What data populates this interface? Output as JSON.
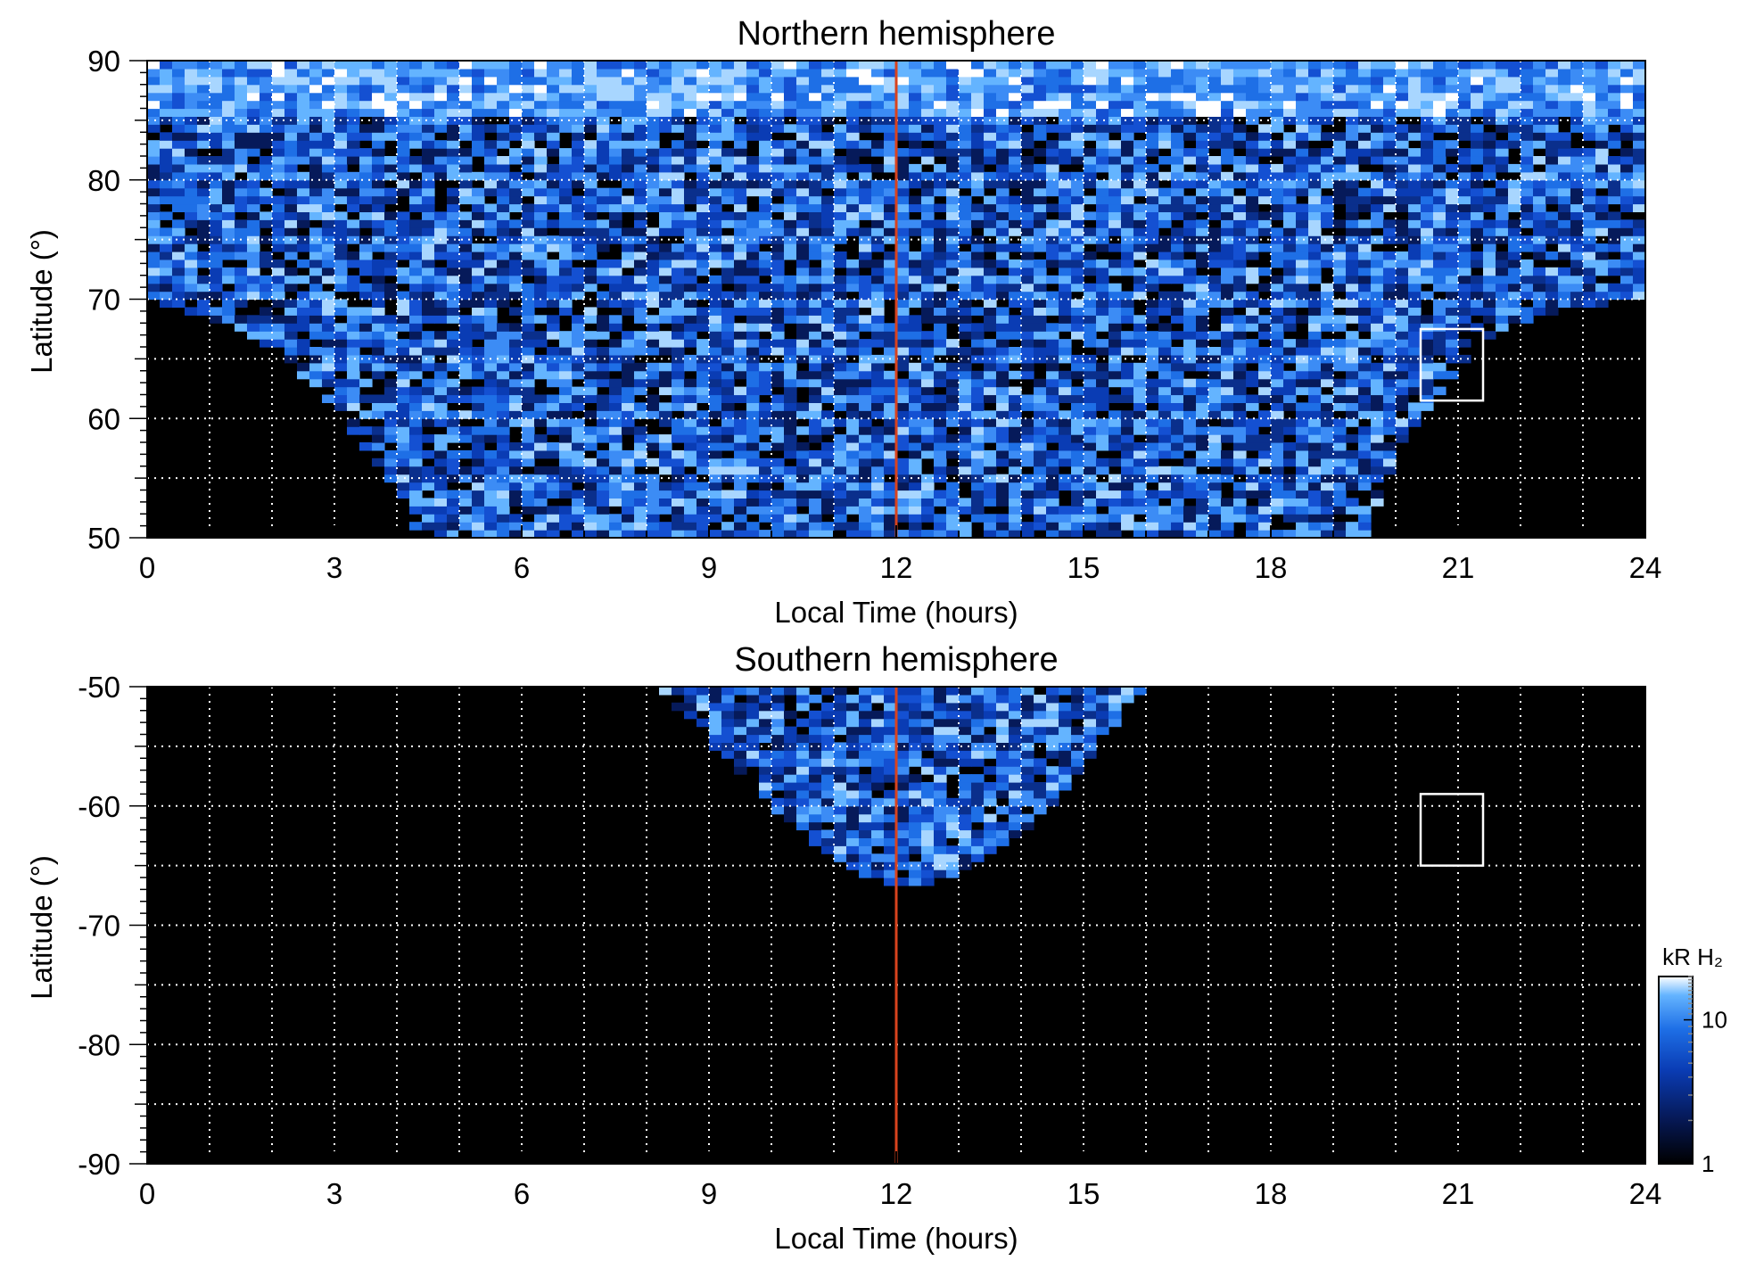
{
  "chart_data": [
    {
      "type": "heatmap",
      "title": "Northern hemisphere",
      "xlabel": "Local Time (hours)",
      "ylabel": "Latitude (°)",
      "xlim": [
        0,
        24
      ],
      "ylim": [
        50,
        90
      ],
      "x_ticks": [
        0,
        3,
        6,
        9,
        12,
        15,
        18,
        21,
        24
      ],
      "x_tick_labels": [
        "0",
        "3",
        "6",
        "9",
        "12",
        "15",
        "18",
        "21",
        "24"
      ],
      "y_ticks": [
        50,
        60,
        70,
        80,
        90
      ],
      "y_tick_labels": [
        "50",
        "60",
        "70",
        "80",
        "90"
      ],
      "grid": true,
      "marker_line": {
        "x": 12,
        "color": "#d9431e"
      },
      "box": {
        "x": [
          20.4,
          21.4
        ],
        "y": [
          61.5,
          67.5
        ]
      },
      "coverage": {
        "description_points_lt_minlat": [
          [
            0,
            70
          ],
          [
            1,
            68.5
          ],
          [
            2,
            66
          ],
          [
            3,
            61
          ],
          [
            4,
            54
          ],
          [
            4.3,
            50
          ],
          [
            19.5,
            50
          ],
          [
            20,
            57
          ],
          [
            20.8,
            63
          ],
          [
            21.5,
            67
          ],
          [
            22.5,
            69
          ],
          [
            24,
            70
          ]
        ]
      },
      "intensity_range_kR": [
        1,
        20
      ]
    },
    {
      "type": "heatmap",
      "title": "Southern hemisphere",
      "xlabel": "Local Time (hours)",
      "ylabel": "Latitude (°)",
      "xlim": [
        0,
        24
      ],
      "ylim": [
        -90,
        -50
      ],
      "x_ticks": [
        0,
        3,
        6,
        9,
        12,
        15,
        18,
        21,
        24
      ],
      "x_tick_labels": [
        "0",
        "3",
        "6",
        "9",
        "12",
        "15",
        "18",
        "21",
        "24"
      ],
      "y_ticks": [
        -50,
        -60,
        -70,
        -80,
        -90
      ],
      "y_tick_labels": [
        "-50",
        "-60",
        "-70",
        "-80",
        "-90"
      ],
      "grid": true,
      "marker_line": {
        "x": 12,
        "color": "#d9431e"
      },
      "box": {
        "x": [
          20.4,
          21.4
        ],
        "y": [
          -65,
          -59
        ]
      },
      "coverage": {
        "description_points_lt_lat": [
          [
            8.2,
            -50
          ],
          [
            9,
            -54.5
          ],
          [
            10,
            -60
          ],
          [
            11,
            -64.5
          ],
          [
            12,
            -67
          ],
          [
            13,
            -66
          ],
          [
            14,
            -62.5
          ],
          [
            15,
            -57
          ],
          [
            16,
            -50
          ]
        ]
      },
      "intensity_range_kR": [
        1,
        20
      ]
    }
  ],
  "colorbar": {
    "label": "kR H₂",
    "ticks": [
      1,
      10
    ],
    "tick_labels": [
      "1",
      "10"
    ],
    "scale": "log",
    "colors": [
      "#000000",
      "#061a5a",
      "#0a3cb4",
      "#1e6fe6",
      "#64b4ff",
      "#ffffff"
    ]
  }
}
